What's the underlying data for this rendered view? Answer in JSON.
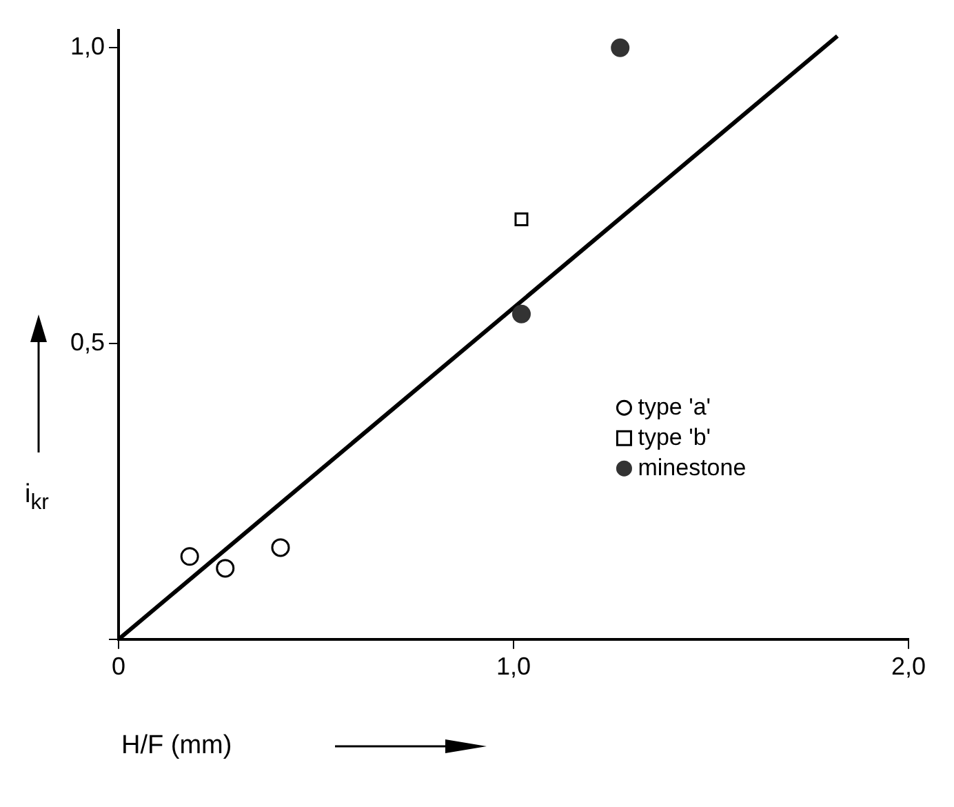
{
  "chart_data": {
    "type": "scatter",
    "xlabel": "H/F (mm)",
    "ylabel": "i$_{kr}$",
    "xlim": [
      0,
      2.0
    ],
    "ylim": [
      0,
      1.03
    ],
    "xticks": [
      {
        "value": 0,
        "label": "0"
      },
      {
        "value": 1.0,
        "label": "1,0"
      },
      {
        "value": 2.0,
        "label": "2,0"
      }
    ],
    "yticks": [
      {
        "value": 0,
        "label": null
      },
      {
        "value": 0.5,
        "label": "0,5"
      },
      {
        "value": 1.0,
        "label": "1,0"
      }
    ],
    "grid": false,
    "legend": "right",
    "series": [
      {
        "name": "type 'a'",
        "color": "#000000",
        "marker": "circle",
        "x": [
          0.18,
          0.27,
          0.41
        ],
        "values": [
          0.14,
          0.12,
          0.155
        ]
      },
      {
        "name": "type 'b'",
        "color": "#000000",
        "marker": "square",
        "x": [
          1.02
        ],
        "values": [
          0.71
        ]
      },
      {
        "name": "minestone",
        "color": "#333333",
        "marker": "circle",
        "x": [
          1.02,
          1.27
        ],
        "values": [
          0.55,
          1.0
        ]
      },
      {
        "type": "line",
        "color": "#000000",
        "marker": "none",
        "line_style": "solid",
        "x": [
          0,
          1.82
        ],
        "values": [
          0,
          1.02
        ]
      }
    ]
  }
}
